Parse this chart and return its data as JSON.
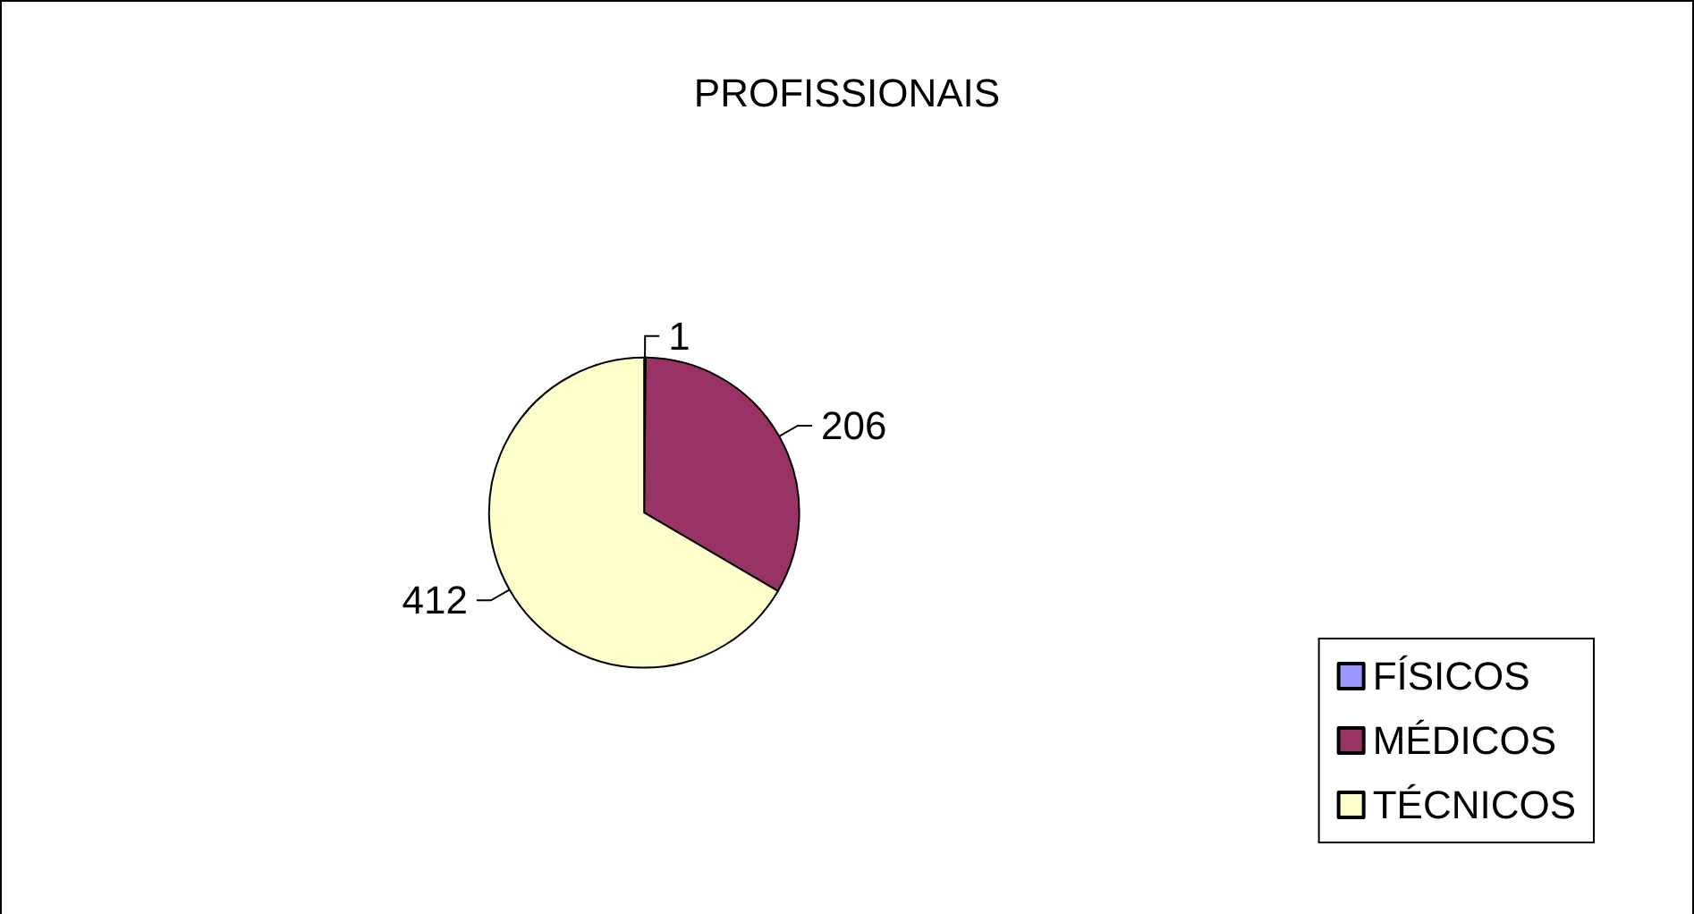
{
  "chart_data": {
    "type": "pie",
    "title": "PROFISSIONAIS",
    "categories": [
      "FÍSICOS",
      "MÉDICOS",
      "TÉCNICOS"
    ],
    "values": [
      1,
      206,
      412
    ],
    "colors": [
      "#9999ff",
      "#993366",
      "#ffffcc"
    ],
    "data_labels": true,
    "legend": "bottom right"
  }
}
